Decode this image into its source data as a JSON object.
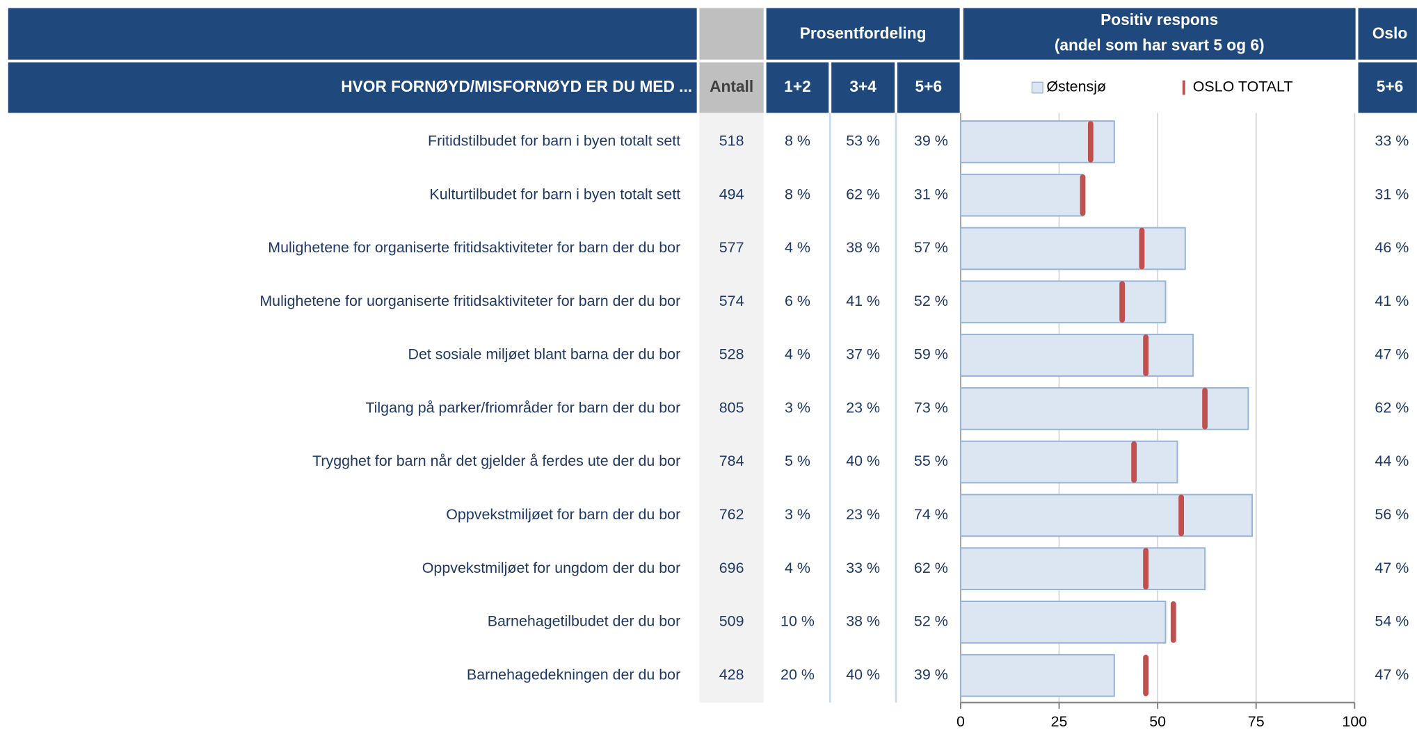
{
  "chart_data": {
    "type": "bar",
    "header": "HVOR FORNØYD/MISFORNØYD ER DU MED ...",
    "group_header": "Prosentfordeling",
    "chart_title": [
      "Positiv respons",
      "(andel som har svart 5 og 6)"
    ],
    "oslo_header": "Oslo",
    "categories": [
      "Fritidstilbudet for barn i byen totalt sett",
      "Kulturtilbudet for barn i byen totalt sett",
      "Mulighetene for organiserte fritidsaktiviteter for barn der du bor",
      "Mulighetene for uorganiserte fritidsaktiviteter for barn der du bor",
      "Det sosiale miljøet blant barna der du bor",
      "Tilgang på parker/friområder for barn der du bor",
      "Trygghet for barn når det gjelder å ferdes ute der du bor",
      "Oppvekstmiljøet for barn der du bor",
      "Oppvekstmiljøet for ungdom der du bor",
      "Barnehagetilbudet der du bor",
      "Barnehagedekningen der du bor"
    ],
    "antall": {
      "label": "Antall",
      "values": [
        518,
        494,
        577,
        574,
        528,
        805,
        784,
        762,
        696,
        509,
        428
      ]
    },
    "share_12": {
      "label": "1+2",
      "values": [
        "8 %",
        "8 %",
        "4 %",
        "6 %",
        "4 %",
        "3 %",
        "5 %",
        "3 %",
        "4 %",
        "10 %",
        "20 %"
      ]
    },
    "share_34": {
      "label": "3+4",
      "values": [
        "53 %",
        "62 %",
        "38 %",
        "41 %",
        "37 %",
        "23 %",
        "40 %",
        "23 %",
        "33 %",
        "38 %",
        "40 %"
      ]
    },
    "series": [
      {
        "name": "Østensjø",
        "label": "5+6",
        "color": "#dce6f2",
        "values": [
          39,
          31,
          57,
          52,
          59,
          73,
          55,
          74,
          62,
          52,
          39
        ],
        "value_labels": [
          "39 %",
          "31 %",
          "57 %",
          "52 %",
          "59 %",
          "73 %",
          "55 %",
          "74 %",
          "62 %",
          "52 %",
          "39 %"
        ]
      },
      {
        "name": "OSLO TOTALT",
        "label": "5+6",
        "color": "#c0504d",
        "values": [
          33,
          31,
          46,
          41,
          47,
          62,
          44,
          56,
          47,
          54,
          47
        ],
        "value_labels": [
          "33 %",
          "31 %",
          "46 %",
          "41 %",
          "47 %",
          "62 %",
          "44 %",
          "56 %",
          "47 %",
          "54 %",
          "47 %"
        ]
      }
    ],
    "xlim": [
      0,
      100
    ],
    "xticks": [
      0,
      25,
      50,
      75,
      100
    ],
    "grid": true
  }
}
